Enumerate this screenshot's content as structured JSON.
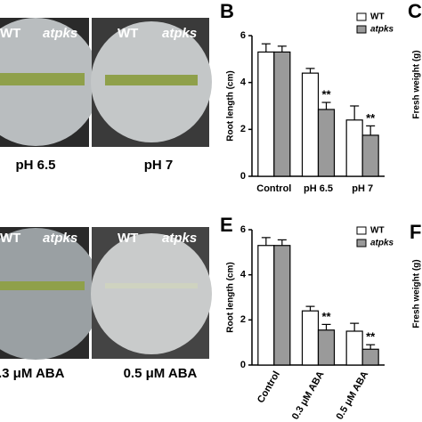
{
  "photos": {
    "top": {
      "genotypes": [
        "WT",
        "atpks",
        "WT",
        "atpks"
      ],
      "conditions": [
        "pH 6.5",
        "pH 7"
      ]
    },
    "bottom": {
      "genotypes": [
        "WT",
        "atpks",
        "WT",
        "atpks"
      ],
      "conditions": [
        ".3 μM ABA",
        "0.5 μM ABA"
      ]
    }
  },
  "chart_data": [
    {
      "type": "bar",
      "panel_label": "B",
      "ylabel": "Root length (cm)",
      "categories": [
        "Control",
        "pH 6.5",
        "pH 7"
      ],
      "series": [
        {
          "name": "WT",
          "color": "#ffffff",
          "values": [
            5.3,
            4.4,
            2.4
          ],
          "errors": [
            0.35,
            0.2,
            0.6
          ],
          "significance": [
            null,
            null,
            null
          ]
        },
        {
          "name": "atpks",
          "color": "#9a9a9a",
          "values": [
            5.3,
            2.85,
            1.75
          ],
          "errors": [
            0.25,
            0.3,
            0.4
          ],
          "significance": [
            null,
            "**",
            "**"
          ]
        }
      ],
      "ylim": [
        0,
        6
      ],
      "yticks": [
        0,
        2,
        4,
        6
      ],
      "rotate_xlabels": false
    },
    {
      "type": "bar",
      "panel_label": "E",
      "ylabel": "Root length (cm)",
      "categories": [
        "Control",
        "0.3 μM ABA",
        "0.5 μM ABA"
      ],
      "series": [
        {
          "name": "WT",
          "color": "#ffffff",
          "values": [
            5.3,
            2.4,
            1.5
          ],
          "errors": [
            0.35,
            0.2,
            0.35
          ],
          "significance": [
            null,
            null,
            null
          ]
        },
        {
          "name": "atpks",
          "color": "#9a9a9a",
          "values": [
            5.3,
            1.55,
            0.7
          ],
          "errors": [
            0.25,
            0.25,
            0.2
          ],
          "significance": [
            null,
            "**",
            "**"
          ]
        }
      ],
      "ylim": [
        0,
        6
      ],
      "yticks": [
        0,
        2,
        4,
        6
      ],
      "rotate_xlabels": true
    }
  ],
  "cut_panels": [
    {
      "panel_label": "C",
      "ylabel": "Fresh weight (g)"
    },
    {
      "panel_label": "F",
      "ylabel": "Fresh weight (g)"
    }
  ]
}
